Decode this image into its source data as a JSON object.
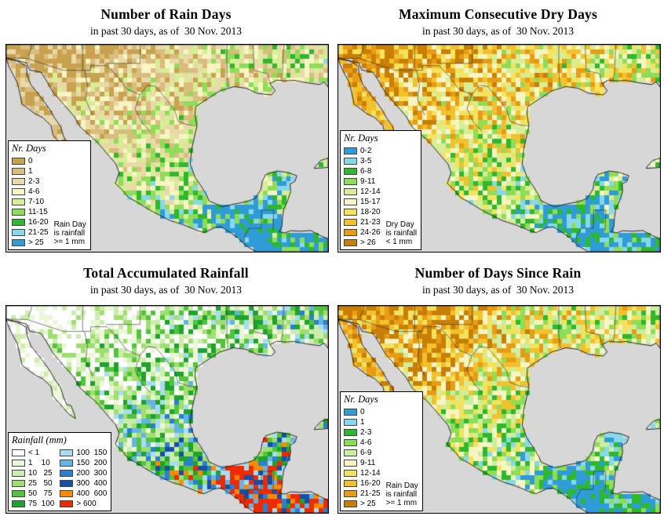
{
  "shared": {
    "subtitle": "in past 30 days, as of  30 Nov. 2013"
  },
  "colors": {
    "ocean": "#d7d7d7",
    "coast": "#141414",
    "border_line": "#2a2a2a",
    "page_bg": "#ffffff"
  },
  "panels": [
    {
      "id": "rain-days",
      "title": "Number of Rain Days",
      "legend": {
        "title": "Nr. Days",
        "columns": 1,
        "entries": [
          {
            "label": "0",
            "color": "#c8a24f"
          },
          {
            "label": "1",
            "color": "#dabd7e"
          },
          {
            "label": "2-3",
            "color": "#ead9a8"
          },
          {
            "label": "4-6",
            "color": "#f8f5c4"
          },
          {
            "label": "7-10",
            "color": "#d7ee97"
          },
          {
            "label": "11-15",
            "color": "#8edd57"
          },
          {
            "label": "16-20",
            "color": "#2eb82d"
          },
          {
            "label": "21-25",
            "color": "#86d8ea"
          },
          {
            "label": "> 25",
            "color": "#2f9cd8"
          }
        ],
        "note_lines": [
          "Rain Day",
          "is rainfall",
          ">= 1 mm"
        ]
      },
      "map": {
        "seed": 3,
        "invert": false,
        "gamma": 1.12
      }
    },
    {
      "id": "consecutive-dry-days",
      "title": "Maximum Consecutive Dry Days",
      "legend": {
        "title": "Nr. Days",
        "columns": 1,
        "entries": [
          {
            "label": "0-2",
            "color": "#2f9cd8"
          },
          {
            "label": "3-5",
            "color": "#86d8ea"
          },
          {
            "label": "6-8",
            "color": "#2eb82d"
          },
          {
            "label": "9-11",
            "color": "#8edd57"
          },
          {
            "label": "12-14",
            "color": "#d7ee97"
          },
          {
            "label": "15-17",
            "color": "#f8f5c4"
          },
          {
            "label": "18-20",
            "color": "#f5e35e"
          },
          {
            "label": "21-23",
            "color": "#f2c12e"
          },
          {
            "label": "24-26",
            "color": "#e89c14"
          },
          {
            "label": "> 26",
            "color": "#c97f06"
          }
        ],
        "note_lines": [
          "Dry Day",
          "is rainfall",
          "< 1 mm"
        ]
      },
      "map": {
        "seed": 7,
        "invert": true,
        "gamma": 1.0
      }
    },
    {
      "id": "accumulated-rainfall",
      "title": "Total Accumulated Rainfall",
      "legend": {
        "title": "Rainfall (mm)",
        "columns": 2,
        "entries": [
          {
            "label": "< 1",
            "color": "#ffffff"
          },
          {
            "label": "1    10",
            "color": "#ecf7d8"
          },
          {
            "label": "10   25",
            "color": "#cdedad"
          },
          {
            "label": "25   50",
            "color": "#9edf6f"
          },
          {
            "label": "50   75",
            "color": "#52c43c"
          },
          {
            "label": "75  100",
            "color": "#1da32e"
          },
          {
            "label": "100  150",
            "color": "#a8dcf0"
          },
          {
            "label": "150  200",
            "color": "#62b4e4"
          },
          {
            "label": "200  300",
            "color": "#2a7fd0"
          },
          {
            "label": "300  400",
            "color": "#1550a8"
          },
          {
            "label": "400  600",
            "color": "#ff8a00"
          },
          {
            "label": "> 600",
            "color": "#ee2a00"
          }
        ]
      },
      "map": {
        "seed": 13,
        "invert": false,
        "gamma": 1.45
      }
    },
    {
      "id": "days-since-rain",
      "title": "Number of Days Since Rain",
      "legend": {
        "title": "Nr. Days",
        "columns": 1,
        "entries": [
          {
            "label": "0",
            "color": "#2f9cd8"
          },
          {
            "label": "1",
            "color": "#86d8ea"
          },
          {
            "label": "2-3",
            "color": "#2eb82d"
          },
          {
            "label": "4-6",
            "color": "#8edd57"
          },
          {
            "label": "6-9",
            "color": "#cdeda0"
          },
          {
            "label": "9-11",
            "color": "#f8f5c4"
          },
          {
            "label": "12-14",
            "color": "#f2e35e"
          },
          {
            "label": "16-20",
            "color": "#f2c12e"
          },
          {
            "label": "21-25",
            "color": "#e89c14"
          },
          {
            "label": "> 25",
            "color": "#c97f06"
          }
        ],
        "note_lines": [
          "Rain Day",
          "is rainfall",
          ">= 1 mm"
        ]
      },
      "map": {
        "seed": 23,
        "invert": true,
        "gamma": 0.95,
        "patch": true
      }
    }
  ],
  "map_shapes": {
    "lon_range": [
      -117,
      -83.5
    ],
    "lat_range": [
      33.8,
      13.8
    ],
    "mainland": [
      [
        -117,
        33.8
      ],
      [
        -117,
        32.52
      ],
      [
        -114.9,
        32.05
      ],
      [
        -114.55,
        31.35
      ],
      [
        -113.4,
        31.15
      ],
      [
        -112.9,
        30.45
      ],
      [
        -112.15,
        29.25
      ],
      [
        -111,
        28
      ],
      [
        -109.95,
        26.9
      ],
      [
        -109.3,
        25.85
      ],
      [
        -108.45,
        25.15
      ],
      [
        -107.75,
        24.6
      ],
      [
        -106.9,
        23.7
      ],
      [
        -106.35,
        23.1
      ],
      [
        -105.6,
        22.3
      ],
      [
        -105.25,
        21.45
      ],
      [
        -105.65,
        20.4
      ],
      [
        -104.9,
        19.75
      ],
      [
        -104.3,
        19.05
      ],
      [
        -103.4,
        18.6
      ],
      [
        -102.2,
        17.9
      ],
      [
        -101,
        17.3
      ],
      [
        -99.9,
        16.8
      ],
      [
        -98.55,
        16.4
      ],
      [
        -97.1,
        15.85
      ],
      [
        -96.4,
        15.65
      ],
      [
        -95.25,
        16.15
      ],
      [
        -94.6,
        16.2
      ],
      [
        -93.6,
        15.6
      ],
      [
        -92.8,
        15.1
      ],
      [
        -92.25,
        14.55
      ],
      [
        -91.9,
        14.3
      ],
      [
        -91,
        13.8
      ],
      [
        -83.5,
        13.8
      ],
      [
        -83.5,
        15.05
      ],
      [
        -84.3,
        15.35
      ],
      [
        -85.3,
        15.85
      ],
      [
        -86.4,
        15.78
      ],
      [
        -87.4,
        15.83
      ],
      [
        -88,
        15.62
      ],
      [
        -88.6,
        15.72
      ],
      [
        -88.3,
        16.25
      ],
      [
        -88.25,
        17.1
      ],
      [
        -88.1,
        18
      ],
      [
        -87.8,
        18.5
      ],
      [
        -87.4,
        19.6
      ],
      [
        -87.45,
        20.35
      ],
      [
        -86.95,
        20.6
      ],
      [
        -86.75,
        21.15
      ],
      [
        -87.7,
        21.45
      ],
      [
        -88.8,
        21.6
      ],
      [
        -90,
        21.25
      ],
      [
        -90.35,
        20.6
      ],
      [
        -90.5,
        19.8
      ],
      [
        -91.1,
        18.95
      ],
      [
        -91.9,
        18.65
      ],
      [
        -93.2,
        18.42
      ],
      [
        -94.5,
        18.15
      ],
      [
        -95.9,
        18.72
      ],
      [
        -96.1,
        19.2
      ],
      [
        -96.75,
        20.2
      ],
      [
        -97.35,
        21
      ],
      [
        -97.85,
        22.25
      ],
      [
        -97.7,
        23.7
      ],
      [
        -97.15,
        25.95
      ],
      [
        -97.35,
        27
      ],
      [
        -97.3,
        27.8
      ],
      [
        -96,
        28.6
      ],
      [
        -94.75,
        29.35
      ],
      [
        -93.3,
        29.75
      ],
      [
        -92.05,
        29.6
      ],
      [
        -90.9,
        29.1
      ],
      [
        -89.4,
        28.95
      ],
      [
        -89,
        29.35
      ],
      [
        -89.55,
        30.05
      ],
      [
        -88.85,
        30.38
      ],
      [
        -88,
        30.3
      ],
      [
        -87,
        30.35
      ],
      [
        -85.7,
        30.12
      ],
      [
        -84.4,
        29.95
      ],
      [
        -83.9,
        30.2
      ],
      [
        -83.5,
        29.7
      ],
      [
        -83.5,
        33.8
      ]
    ],
    "baja": [
      [
        -117,
        32.45
      ],
      [
        -116.75,
        31.75
      ],
      [
        -116.3,
        30.9
      ],
      [
        -115.85,
        30.15
      ],
      [
        -115.65,
        29.35
      ],
      [
        -115.35,
        28.05
      ],
      [
        -115.05,
        27.85
      ],
      [
        -114.05,
        27.15
      ],
      [
        -113.2,
        26.75
      ],
      [
        -112.35,
        26
      ],
      [
        -112.15,
        25.1
      ],
      [
        -111.45,
        24.35
      ],
      [
        -110.5,
        23.35
      ],
      [
        -109.8,
        22.9
      ],
      [
        -109.95,
        23.45
      ],
      [
        -110.25,
        24.15
      ],
      [
        -110.7,
        24.25
      ],
      [
        -111.05,
        25
      ],
      [
        -111.35,
        25.9
      ],
      [
        -111.95,
        26.7
      ],
      [
        -112.4,
        27.45
      ],
      [
        -113.05,
        28.3
      ],
      [
        -113.85,
        29.25
      ],
      [
        -114.45,
        29.95
      ],
      [
        -114.85,
        30.95
      ],
      [
        -114.9,
        31.72
      ],
      [
        -115.9,
        32.25
      ],
      [
        -116.6,
        32.35
      ]
    ],
    "cuba": [
      [
        -84.95,
        21.85
      ],
      [
        -84.1,
        21.9
      ],
      [
        -83.5,
        21.95
      ],
      [
        -83.5,
        22.85
      ],
      [
        -84.25,
        22.62
      ],
      [
        -84.8,
        22.1
      ]
    ],
    "borders": [
      [
        [
          -117,
          32.52
        ],
        [
          -114.85,
          32.48
        ],
        [
          -111.07,
          31.33
        ],
        [
          -108.21,
          31.33
        ],
        [
          -108.21,
          31.78
        ],
        [
          -106.53,
          31.78
        ],
        [
          -105.4,
          30.7
        ],
        [
          -104.5,
          29.55
        ],
        [
          -103.1,
          28.98
        ],
        [
          -102.3,
          29.88
        ],
        [
          -101.45,
          29.77
        ],
        [
          -100.3,
          28.5
        ],
        [
          -99.5,
          27.55
        ],
        [
          -99.1,
          26.4
        ],
        [
          -98.1,
          26.05
        ],
        [
          -97.15,
          25.95
        ]
      ],
      [
        [
          -109.05,
          31.33
        ],
        [
          -109.05,
          33.8
        ]
      ],
      [
        [
          -103.06,
          32
        ],
        [
          -103.06,
          33.8
        ]
      ],
      [
        [
          -106.62,
          32
        ],
        [
          -103.06,
          32
        ]
      ],
      [
        [
          -93.9,
          29.7
        ],
        [
          -94.04,
          31
        ],
        [
          -94.04,
          33.8
        ]
      ],
      [
        [
          -114.72,
          32.72
        ],
        [
          -114.45,
          33.3
        ],
        [
          -114.35,
          33.8
        ]
      ],
      [
        [
          -92.25,
          14.55
        ],
        [
          -92.2,
          15.25
        ],
        [
          -91.73,
          16.07
        ],
        [
          -90.45,
          16.07
        ],
        [
          -90.42,
          17.82
        ],
        [
          -89.15,
          17.82
        ]
      ],
      [
        [
          -89.15,
          17.82
        ],
        [
          -89.22,
          15.88
        ]
      ],
      [
        [
          -108.85,
          31.33
        ],
        [
          -108.55,
          29.9
        ],
        [
          -108.75,
          28.5
        ],
        [
          -108,
          27
        ]
      ],
      [
        [
          -103.1,
          28.98
        ],
        [
          -103.6,
          27.6
        ],
        [
          -102.9,
          26.3
        ],
        [
          -102,
          25.4
        ]
      ],
      [
        [
          -89.55,
          30.05
        ],
        [
          -89.8,
          31
        ],
        [
          -91.2,
          31.3
        ],
        [
          -91.3,
          33.8
        ]
      ],
      [
        [
          -88.4,
          30.37
        ],
        [
          -88.25,
          31
        ],
        [
          -88.1,
          33.8
        ]
      ]
    ]
  }
}
